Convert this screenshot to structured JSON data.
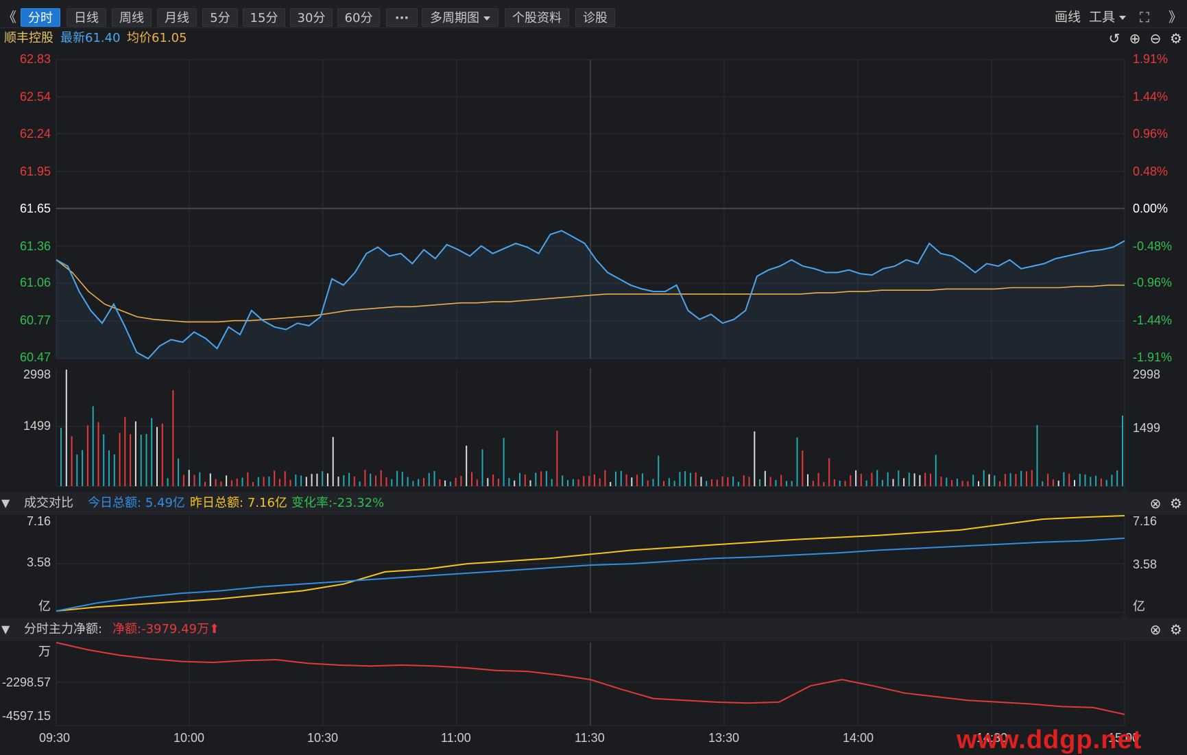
{
  "toolbar": {
    "left_arrow": "《",
    "right_arrow": "》",
    "tabs": [
      "分时",
      "日线",
      "周线",
      "月线",
      "5分",
      "15分",
      "30分",
      "60分",
      "···",
      "多周期图",
      "个股资料",
      "诊股"
    ],
    "draw_line": "画线",
    "tools": "工具"
  },
  "info": {
    "name": "顺丰控股",
    "latest_label": "最新",
    "latest_value": "61.40",
    "avg_label": "均价",
    "avg_value": "61.05"
  },
  "price_chart": {
    "left_labels": [
      "62.83",
      "62.54",
      "62.24",
      "61.95",
      "61.65",
      "61.36",
      "61.06",
      "60.77",
      "60.47"
    ],
    "right_labels": [
      "1.91%",
      "1.44%",
      "0.96%",
      "0.48%",
      "0.00%",
      "-0.48%",
      "-0.96%",
      "-1.44%",
      "-1.91%"
    ],
    "volume_labels": [
      "2998",
      "1499"
    ]
  },
  "turnover_panel": {
    "title": "成交对比",
    "today_label": "今日总额:",
    "today_value": "5.49亿",
    "yesterday_label": "昨日总额:",
    "yesterday_value": "7.16亿",
    "change_label": "变化率:",
    "change_value": "-23.32%",
    "axis_labels": [
      "7.16",
      "3.58",
      "亿"
    ]
  },
  "mainforce_panel": {
    "title": "分时主力净额:",
    "net_label": "净额:",
    "net_value": "-3979.49万",
    "axis_labels": [
      "万",
      "-2298.57",
      "-4597.15"
    ]
  },
  "time_labels": [
    "09:30",
    "10:00",
    "10:30",
    "11:00",
    "11:30",
    "13:30",
    "14:00",
    "14:30",
    "15:00"
  ],
  "watermark": "www.ddgp.net",
  "colors": {
    "up": "#e83a3a",
    "down": "#2fbf4f",
    "price_line": "#4da6f0",
    "avg_line": "#f0b04a",
    "today_line": "#2f8fe6",
    "yesterday_line": "#f5c518",
    "mainforce_line": "#e03a3a",
    "volume_teal": "#21a9b5"
  },
  "chart_data": [
    {
      "type": "line",
      "title": "顺丰控股",
      "series": [
        {
          "name": "最新",
          "values": [
            61.25,
            61.2,
            61.0,
            60.85,
            60.75,
            60.9,
            60.72,
            60.52,
            60.47,
            60.57,
            60.62,
            60.6,
            60.68,
            60.63,
            60.55,
            60.72,
            60.66,
            60.85,
            60.77,
            60.72,
            60.7,
            60.75,
            60.73,
            60.8,
            61.1,
            61.05,
            61.15,
            61.3,
            61.35,
            61.28,
            61.3,
            61.22,
            61.33,
            61.26,
            61.37,
            61.33,
            61.28,
            61.36,
            61.3,
            61.34,
            61.38,
            61.35,
            61.3,
            61.45,
            61.48,
            61.43,
            61.38,
            61.25,
            61.15,
            61.1,
            61.05,
            61.02,
            61.0,
            61.0,
            61.05,
            60.85,
            60.78,
            60.82,
            60.75,
            60.78,
            60.85,
            61.12,
            61.17,
            61.2,
            61.25,
            61.2,
            61.18,
            61.15,
            61.15,
            61.17,
            61.14,
            61.13,
            61.18,
            61.2,
            61.25,
            61.22,
            61.38,
            61.3,
            61.28,
            61.22,
            61.15,
            61.22,
            61.2,
            61.25,
            61.18,
            61.2,
            61.22,
            61.26,
            61.28,
            61.3,
            61.32,
            61.33,
            61.35,
            61.4
          ]
        },
        {
          "name": "均价",
          "values": [
            61.25,
            61.15,
            61.0,
            60.9,
            60.85,
            60.8,
            60.78,
            60.77,
            60.76,
            60.76,
            60.76,
            60.77,
            60.77,
            60.78,
            60.79,
            60.8,
            60.81,
            60.83,
            60.85,
            60.86,
            60.87,
            60.88,
            60.88,
            60.89,
            60.9,
            60.91,
            60.91,
            60.92,
            60.92,
            60.93,
            60.94,
            60.95,
            60.96,
            60.97,
            60.98,
            60.98,
            60.98,
            60.98,
            60.98,
            60.98,
            60.98,
            60.98,
            60.98,
            60.98,
            60.98,
            60.98,
            60.98,
            60.99,
            60.99,
            61.0,
            61.0,
            61.01,
            61.01,
            61.01,
            61.01,
            61.02,
            61.02,
            61.02,
            61.02,
            61.03,
            61.03,
            61.03,
            61.03,
            61.04,
            61.04,
            61.05,
            61.05
          ]
        }
      ],
      "ylim": [
        60.47,
        62.83
      ]
    },
    {
      "type": "line",
      "title": "成交对比",
      "series": [
        {
          "name": "今日总额",
          "values": [
            0.1,
            0.7,
            1.1,
            1.4,
            1.6,
            1.9,
            2.1,
            2.3,
            2.5,
            2.7,
            2.9,
            3.1,
            3.3,
            3.5,
            3.6,
            3.8,
            4.0,
            4.1,
            4.25,
            4.4,
            4.6,
            4.75,
            4.9,
            5.05,
            5.2,
            5.3,
            5.49
          ]
        },
        {
          "name": "昨日总额",
          "values": [
            0.1,
            0.4,
            0.6,
            0.8,
            1.0,
            1.3,
            1.6,
            2.1,
            3.0,
            3.2,
            3.6,
            3.8,
            4.0,
            4.3,
            4.6,
            4.8,
            5.0,
            5.2,
            5.4,
            5.55,
            5.7,
            5.9,
            6.1,
            6.5,
            6.9,
            7.05,
            7.16
          ]
        }
      ],
      "ylim": [
        0,
        7.16
      ]
    },
    {
      "type": "line",
      "title": "分时主力净额",
      "series": [
        {
          "name": "净额",
          "values": [
            0,
            -400,
            -700,
            -900,
            -1050,
            -1100,
            -1000,
            -950,
            -1150,
            -1250,
            -1300,
            -1250,
            -1300,
            -1400,
            -1550,
            -1600,
            -1800,
            -2050,
            -2600,
            -3100,
            -3200,
            -3300,
            -3350,
            -3300,
            -2400,
            -2050,
            -2400,
            -2800,
            -3000,
            -3200,
            -3300,
            -3400,
            -3550,
            -3600,
            -3980
          ]
        }
      ],
      "ylim": [
        -4597.15,
        0
      ]
    }
  ]
}
